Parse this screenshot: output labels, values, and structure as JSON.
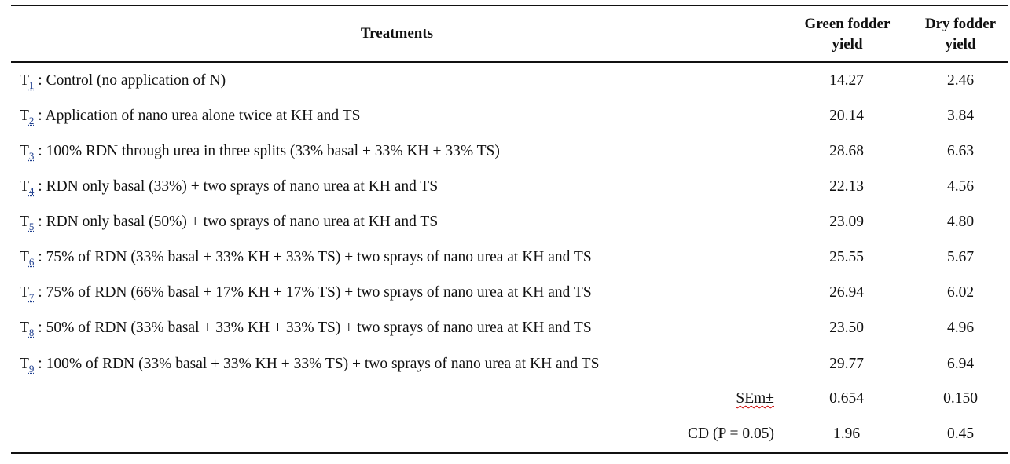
{
  "headers": {
    "treatments": "Treatments",
    "green_line1": "Green fodder",
    "green_line2": "yield",
    "dry_line1": "Dry fodder",
    "dry_line2": "yield"
  },
  "rows": [
    {
      "code": "T",
      "sub": "1",
      "sep": " :",
      "desc": " Control (no application of N)",
      "green": "14.27",
      "dry": "2.46"
    },
    {
      "code": "T",
      "sub": "2",
      "sep": " :",
      "desc": " Application of nano urea alone twice at KH and TS",
      "green": "20.14",
      "dry": "3.84"
    },
    {
      "code": "T",
      "sub": "3",
      "sep": " :",
      "desc": " 100% RDN through urea in three splits (33% basal + 33% KH + 33% TS)",
      "green": "28.68",
      "dry": "6.63"
    },
    {
      "code": "T",
      "sub": "4",
      "sep": " :",
      "desc": " RDN only basal (33%) + two sprays of nano urea at KH and TS",
      "green": "22.13",
      "dry": "4.56"
    },
    {
      "code": "T",
      "sub": "5",
      "sep": " :",
      "desc": " RDN only basal (50%) + two sprays of nano urea at KH and TS",
      "green": "23.09",
      "dry": "4.80"
    },
    {
      "code": "T",
      "sub": "6",
      "sep": " :",
      "desc": " 75% of RDN (33% basal + 33% KH + 33% TS) + two sprays of nano urea at KH and TS",
      "green": "25.55",
      "dry": "5.67"
    },
    {
      "code": "T",
      "sub": "7",
      "sep": " :",
      "desc": " 75% of RDN (66% basal + 17% KH + 17% TS) + two sprays of nano urea at KH and TS",
      "green": "26.94",
      "dry": "6.02"
    },
    {
      "code": "T",
      "sub": "8",
      "sep": " :",
      "desc": " 50% of RDN (33% basal + 33% KH + 33% TS) + two sprays of nano urea at KH and TS",
      "green": "23.50",
      "dry": "4.96"
    },
    {
      "code": "T",
      "sub": "9",
      "sep": " :",
      "desc": " 100% of RDN (33% basal + 33% KH + 33% TS) + two sprays of nano urea at KH and TS",
      "green": "29.77",
      "dry": "6.94"
    }
  ],
  "stats": {
    "sem_label": "SEm±",
    "sem_green": "0.654",
    "sem_dry": "0.150",
    "cd_label": "CD (P = 0.05)",
    "cd_green": "1.96",
    "cd_dry": "0.45"
  }
}
